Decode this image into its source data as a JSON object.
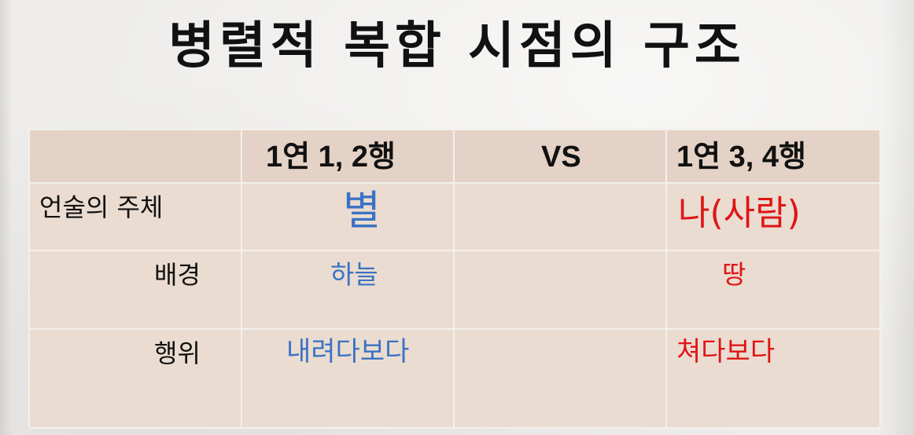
{
  "title": "병렬적 복합 시점의 구조",
  "table": {
    "header": [
      "",
      "1연 1, 2행",
      "VS",
      "1연 3, 4행"
    ],
    "rows": [
      {
        "label": "언술의 주체",
        "left": "별",
        "middle": "",
        "right": "나(사람)"
      },
      {
        "label": "배경",
        "left": "하늘",
        "middle": "",
        "right": "땅"
      },
      {
        "label": "행위",
        "left": "내려다보다",
        "middle": "",
        "right": "쳐다보다"
      }
    ]
  },
  "colors": {
    "left_value": "#3b73c3",
    "right_value": "#e01515",
    "header_fill": "#e4d2c6",
    "cell_fill": "#eadcd1"
  }
}
